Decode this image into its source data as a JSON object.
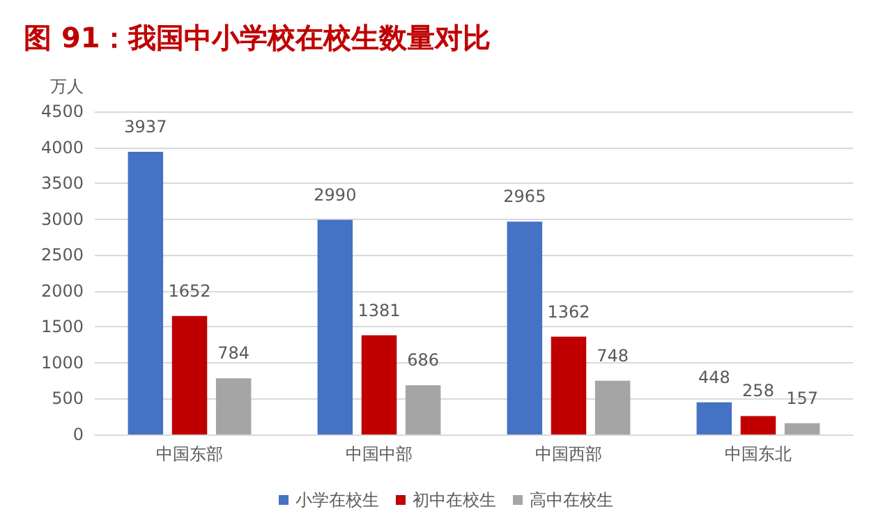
{
  "chart_data": {
    "type": "bar",
    "title": "图 91：我国中小学校在校生数量对比",
    "ylabel": "万人",
    "categories": [
      "中国东部",
      "中国中部",
      "中国西部",
      "中国东北"
    ],
    "series": [
      {
        "name": "小学在校生",
        "color": "#4472c4",
        "values": [
          3937,
          2990,
          2965,
          448
        ]
      },
      {
        "name": "初中在校生",
        "color": "#c00000",
        "values": [
          1652,
          1381,
          1362,
          258
        ]
      },
      {
        "name": "高中在校生",
        "color": "#a5a5a5",
        "values": [
          784,
          686,
          748,
          157
        ]
      }
    ],
    "ylim": [
      0,
      4500
    ],
    "yticks": [
      0,
      500,
      1000,
      1500,
      2000,
      2500,
      3000,
      3500,
      4000,
      4500
    ],
    "grid": "y",
    "legend": "bottom",
    "data_labels": true
  }
}
